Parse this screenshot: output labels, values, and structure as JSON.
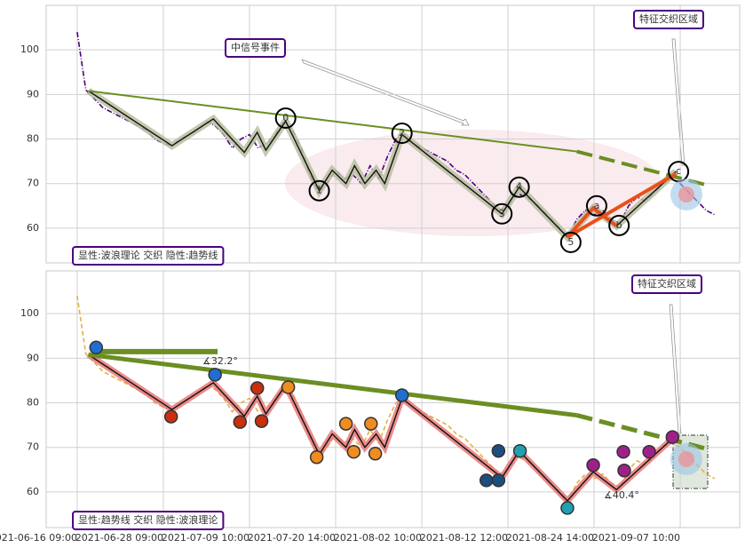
{
  "chart_data": [
    {
      "type": "line",
      "ylim": [
        52.2,
        110
      ],
      "yticks": [
        60,
        70,
        80,
        90,
        100
      ],
      "price": {
        "color": "#4b0082",
        "x": [
          0,
          1,
          2,
          3,
          4,
          5,
          6,
          7,
          8,
          9,
          10,
          11,
          12,
          13,
          14,
          15,
          16,
          17,
          18,
          19,
          20,
          21,
          22,
          23,
          24,
          25,
          26,
          27,
          28,
          29,
          30,
          31,
          32,
          33,
          34,
          35,
          36,
          37,
          38,
          39,
          40,
          41,
          42,
          43,
          44,
          45,
          46,
          47,
          48,
          49,
          50,
          51,
          52,
          53,
          54,
          55,
          56,
          57,
          58,
          59,
          60,
          61,
          62,
          63,
          64,
          65,
          66,
          67,
          68,
          69,
          70,
          71,
          72,
          73,
          74
        ],
        "y": [
          104,
          91,
          89,
          87,
          86,
          85,
          84,
          83,
          82,
          80,
          79,
          78.5,
          80,
          81,
          82,
          84,
          83,
          81,
          78,
          80,
          81,
          78,
          79,
          81,
          84,
          82,
          78,
          72,
          68,
          70,
          73,
          71,
          72,
          70,
          74,
          71,
          76,
          80,
          81,
          79,
          78,
          77,
          76,
          75,
          73,
          72,
          70,
          68,
          66,
          64,
          65,
          68,
          67,
          66,
          64,
          62,
          60,
          58,
          62,
          64,
          63,
          64,
          62,
          61,
          65,
          67,
          66,
          68,
          70,
          71,
          70,
          68,
          66,
          64,
          63
        ]
      },
      "waves": {
        "x": [
          1.3,
          11,
          15.8,
          19.4,
          20.9,
          21.9,
          24.2,
          28.1,
          29.6,
          31.2,
          32.2,
          33.4,
          34.7,
          35.7,
          37.7,
          49.3,
          51.3,
          56.9,
          59.9,
          62.6,
          69.5
        ],
        "y": [
          90.8,
          78.5,
          84.5,
          77,
          81.5,
          77.5,
          84,
          68.4,
          73,
          70,
          74,
          70,
          73,
          70,
          81,
          63.2,
          69.2,
          58,
          64.5,
          60.5,
          72.7
        ]
      },
      "wave_labels": {
        "labels": [
          "0",
          "1",
          "2",
          "3",
          "4",
          "5",
          "a",
          "b",
          "c"
        ],
        "x": [
          24.2,
          28.1,
          37.7,
          49.3,
          51.3,
          57.3,
          60.3,
          62.9,
          69.8
        ],
        "y": [
          84.7,
          68.4,
          81.3,
          63.2,
          69.2,
          56.8,
          65,
          60.6,
          72.7
        ]
      },
      "trend": [
        {
          "x": [
            1.3,
            58
          ],
          "y": [
            90.8,
            77.2
          ],
          "dash": false,
          "width": 2
        },
        {
          "x": [
            58,
            73.2
          ],
          "y": [
            77.2,
            69.6
          ],
          "dash": true,
          "width": 4
        }
      ],
      "highlight": {
        "color": "#e8501a",
        "x": [
          69.5,
          56.9,
          59.9,
          62.6
        ],
        "y": [
          72.2,
          58,
          64.5,
          60.5
        ]
      },
      "annotations": [
        "中信号事件",
        "特征交织区域"
      ],
      "caption": "显性:波浪理论 交织 隐性:趋势线"
    },
    {
      "type": "line",
      "ylim": [
        52,
        109.6
      ],
      "yticks": [
        60,
        70,
        80,
        90,
        100
      ],
      "price": {
        "color": "#e8b040",
        "x": [
          0,
          1,
          2,
          3,
          4,
          5,
          6,
          7,
          8,
          9,
          10,
          11,
          12,
          13,
          14,
          15,
          16,
          17,
          18,
          19,
          20,
          21,
          22,
          23,
          24,
          25,
          26,
          27,
          28,
          29,
          30,
          31,
          32,
          33,
          34,
          35,
          36,
          37,
          38,
          39,
          40,
          41,
          42,
          43,
          44,
          45,
          46,
          47,
          48,
          49,
          50,
          51,
          52,
          53,
          54,
          55,
          56,
          57,
          58,
          59,
          60,
          61,
          62,
          63,
          64,
          65,
          66,
          67,
          68,
          69,
          70,
          71,
          72,
          73,
          74
        ],
        "y": [
          104,
          91,
          89,
          87,
          86,
          85,
          84,
          83,
          82,
          80,
          79,
          78.5,
          80,
          81,
          82,
          84,
          83,
          81,
          78,
          80,
          81,
          78,
          79,
          81,
          84,
          82,
          78,
          72,
          68,
          70,
          73,
          71,
          72,
          70,
          74,
          71,
          76,
          80,
          81,
          79,
          78,
          77,
          76,
          75,
          73,
          72,
          70,
          68,
          66,
          64,
          65,
          68,
          67,
          66,
          64,
          62,
          60,
          58,
          62,
          64,
          63,
          64,
          62,
          61,
          65,
          67,
          66,
          68,
          70,
          71,
          70,
          68,
          66,
          64,
          63
        ]
      },
      "waves": {
        "x": [
          1.3,
          11,
          15.8,
          19.4,
          20.9,
          21.9,
          24.2,
          28.1,
          29.6,
          31.2,
          32.2,
          33.4,
          34.7,
          35.7,
          37.7,
          49.3,
          51.3,
          56.9,
          59.9,
          62.6,
          69.5
        ],
        "y": [
          90.8,
          78.5,
          84.5,
          77,
          81.5,
          77.5,
          84,
          68.4,
          73,
          70,
          74,
          70,
          73,
          70,
          81,
          63.2,
          69.2,
          58,
          64.5,
          60.5,
          72.7
        ]
      },
      "markers": {
        "x": [
          2.2,
          10.9,
          16,
          18.9,
          20.9,
          21.4,
          24.5,
          27.8,
          31.2,
          32.1,
          34.1,
          34.6,
          37.7,
          47.5,
          48.9,
          48.9,
          51.4,
          56.9,
          59.9,
          63.4,
          63.5,
          66.4,
          69.1
        ],
        "y": [
          92.4,
          76.9,
          86.3,
          75.7,
          83.3,
          75.9,
          83.5,
          67.8,
          75.3,
          69,
          75.3,
          68.6,
          81.7,
          62.6,
          69.2,
          62.6,
          69.2,
          56.4,
          66,
          69,
          64.8,
          69,
          72.3
        ],
        "colors": [
          "#1f6fd0",
          "#c83010",
          "#1f6fd0",
          "#c83010",
          "#c83010",
          "#c83010",
          "#f08c20",
          "#f08c20",
          "#f08c20",
          "#f08c20",
          "#f08c20",
          "#f08c20",
          "#1f6fd0",
          "#1c4e80",
          "#1c4e80",
          "#1c4e80",
          "#20a0b0",
          "#20a0b0",
          "#a0208a",
          "#a0208a",
          "#a0208a",
          "#a0208a",
          "#a0208a"
        ]
      },
      "trend": [
        {
          "x": [
            1.3,
            58
          ],
          "y": [
            90.8,
            77.2
          ],
          "dash": false,
          "width": 5
        },
        {
          "x": [
            58,
            73.2
          ],
          "y": [
            77.2,
            69.6
          ],
          "dash": true,
          "width": 5
        }
      ],
      "hline": {
        "x": [
          2.2,
          16.3
        ],
        "y": [
          91.5,
          91.5
        ]
      },
      "angles": [
        {
          "label": "∡32.2°",
          "color": "#6b8e23"
        },
        {
          "label": "∡40.4°",
          "color": "#e87070"
        }
      ],
      "annotations": [
        "特征交织区域"
      ],
      "caption": "显性:趋势线 交织 隐性:波浪理论"
    }
  ],
  "x_axis": {
    "xlim": [
      -3.6,
      76.9
    ],
    "xticks": [
      {
        "value": 0,
        "label": "2021-06-16 09:00"
      },
      {
        "value": 10,
        "label": "2021-06-28 09:00"
      },
      {
        "value": 20,
        "label": "2021-07-09 10:00"
      },
      {
        "value": 30,
        "label": "2021-07-20 14:00"
      },
      {
        "value": 40,
        "label": "2021-08-02 10:00"
      },
      {
        "value": 50,
        "label": "2021-08-12 12:00"
      },
      {
        "value": 60,
        "label": "2021-08-24 14:00"
      },
      {
        "value": 70,
        "label": "2021-09-07 10:00"
      }
    ]
  }
}
